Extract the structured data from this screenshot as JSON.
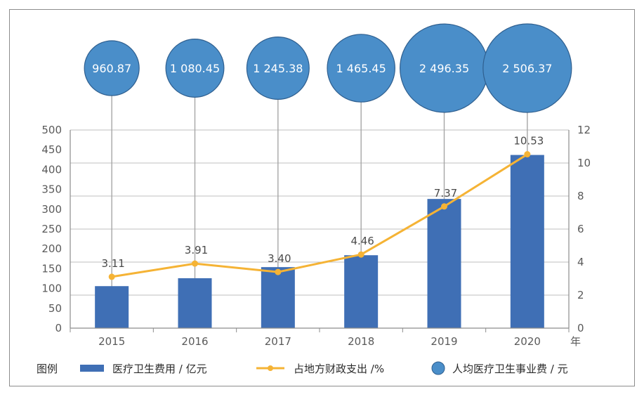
{
  "chart_data": {
    "type": "bar",
    "categories": [
      "2015",
      "2016",
      "2017",
      "2018",
      "2019",
      "2020"
    ],
    "x_unit_label": "年",
    "left_axis": {
      "ticks": [
        0,
        50,
        100,
        150,
        200,
        250,
        300,
        350,
        400,
        450,
        500
      ],
      "ylim": [
        0,
        500
      ]
    },
    "right_axis": {
      "ticks": [
        0,
        2,
        4,
        6,
        8,
        10,
        12
      ],
      "ylim": [
        0,
        12
      ]
    },
    "series": [
      {
        "name": "医疗卫生费用 / 亿元",
        "type": "bar",
        "axis": "left",
        "color": "#3f6fb5",
        "values": [
          106,
          126,
          154,
          184,
          326,
          437
        ]
      },
      {
        "name": "占地方财政支出 /%",
        "type": "line",
        "axis": "right",
        "color": "#f5b335",
        "values": [
          3.11,
          3.91,
          3.4,
          4.46,
          7.37,
          10.53
        ],
        "value_labels": [
          "3.11",
          "3.91",
          "3.40",
          "4.46",
          "7.37",
          "10.53"
        ]
      },
      {
        "name": "人均医疗卫生事业费 / 元",
        "type": "bubble",
        "color": "#4a8ec9",
        "values": [
          960.87,
          1080.45,
          1245.38,
          1465.45,
          2496.35,
          2506.37
        ],
        "value_labels": [
          "960.87",
          "1 080.45",
          "1 245.38",
          "1 465.45",
          "2 496.35",
          "2 506.37"
        ]
      }
    ],
    "legend": {
      "title": "图例",
      "position": "bottom"
    },
    "grid": true
  }
}
